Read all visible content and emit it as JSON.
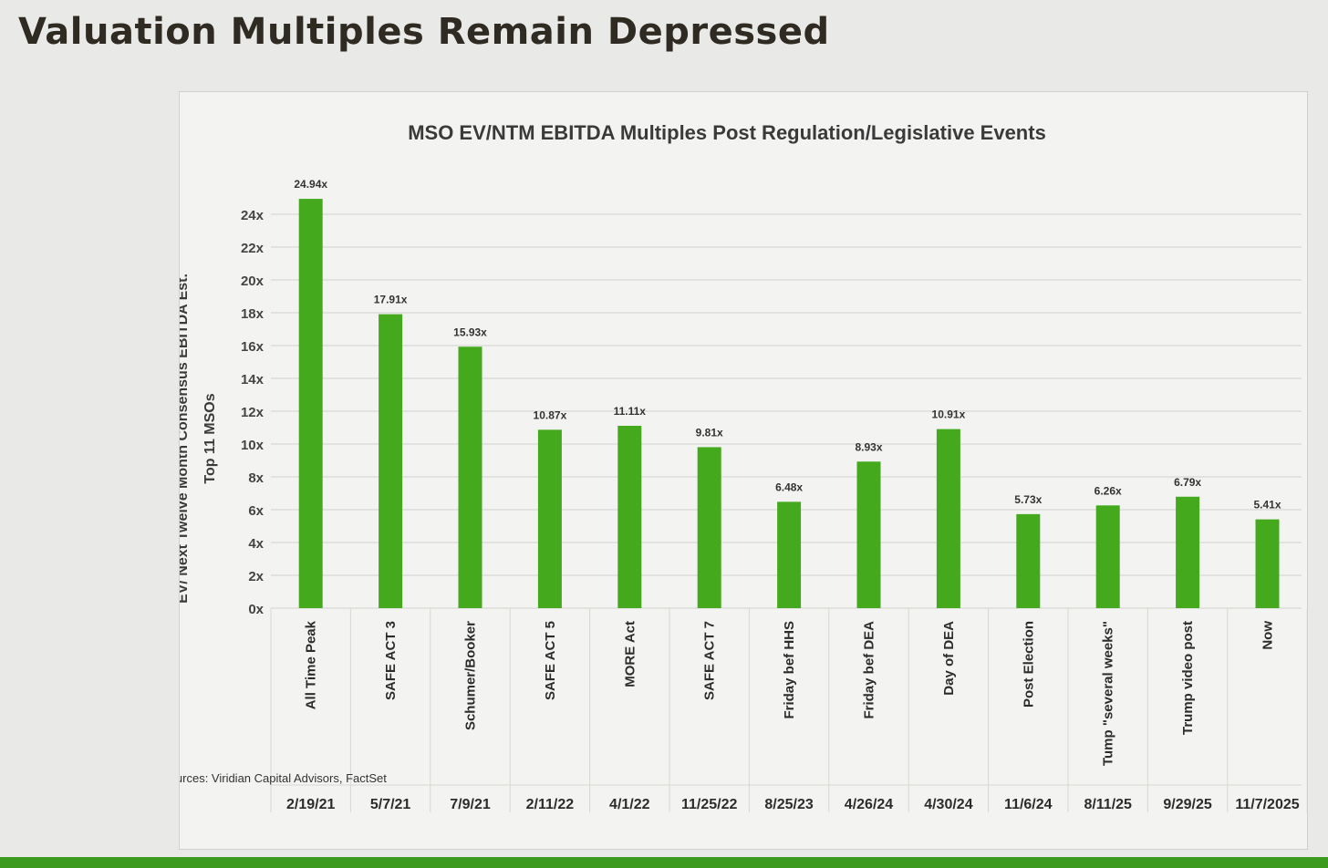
{
  "slide": {
    "title": "Valuation Multiples Remain Depressed"
  },
  "colors": {
    "bar": "#45a91d",
    "gridline": "#d0d2cd",
    "title_text": "#2f2a22"
  },
  "chart_data": {
    "type": "bar",
    "title": "MSO EV/NTM EBITDA Multiples Post Regulation/Legislative Events",
    "ylabel": "EV/ Next Twelve Month Consensus EBITDA Est.",
    "ylabel_line2": "Top 11 MSOs",
    "xlabel": "",
    "ylim": [
      0,
      24
    ],
    "yticks": [
      "0x",
      "2x",
      "4x",
      "6x",
      "8x",
      "10x",
      "12x",
      "14x",
      "16x",
      "18x",
      "20x",
      "22x",
      "24x"
    ],
    "grid": true,
    "legend": "none",
    "categories": [
      "All Time Peak",
      "SAFE ACT 3",
      "Schumer/Booker",
      "SAFE ACT 5",
      "MORE Act",
      "SAFE ACT 7",
      "Friday bef HHS",
      "Friday bef DEA",
      "Day of DEA",
      "Post Election",
      "Tump \"several weeks\"",
      "Trump video post",
      "Now"
    ],
    "dates": [
      "2/19/21",
      "5/7/21",
      "7/9/21",
      "2/11/22",
      "4/1/22",
      "11/25/22",
      "8/25/23",
      "4/26/24",
      "4/30/24",
      "11/6/24",
      "8/11/25",
      "9/29/25",
      "11/7/2025"
    ],
    "values": [
      24.94,
      17.91,
      15.93,
      10.87,
      11.11,
      9.81,
      6.48,
      8.93,
      10.91,
      5.73,
      6.26,
      6.79,
      5.41
    ],
    "data_labels": [
      "24.94x",
      "17.91x",
      "15.93x",
      "10.87x",
      "11.11x",
      "9.81x",
      "6.48x",
      "8.93x",
      "10.91x",
      "5.73x",
      "6.26x",
      "6.79x",
      "5.41x"
    ],
    "source": "Sources: Viridian Capital Advisors, FactSet"
  }
}
